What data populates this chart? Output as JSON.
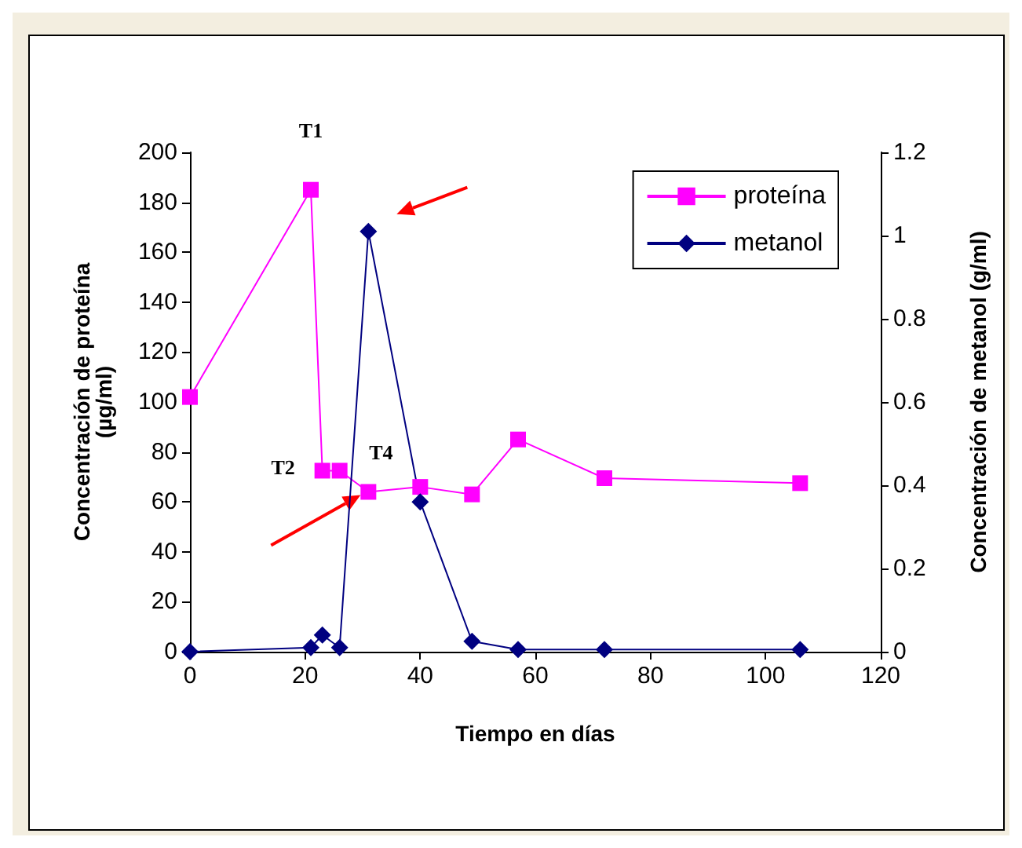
{
  "chart_data": {
    "type": "line",
    "xlabel": "Tiempo en días",
    "ylabel": "Concentración de proteína\n(µg/ml)",
    "y2label": "Concentración de metanol (g/ml)",
    "xlim": [
      0,
      120
    ],
    "xticks": [
      0,
      20,
      40,
      60,
      80,
      100,
      120
    ],
    "ylim": [
      0,
      200
    ],
    "yticks": [
      0,
      20,
      40,
      60,
      80,
      100,
      120,
      140,
      160,
      180,
      200
    ],
    "y2lim": [
      0,
      1.2
    ],
    "y2ticks": [
      0,
      0.2,
      0.4,
      0.6,
      0.8,
      1,
      1.2
    ],
    "grid": false,
    "legend": "top right",
    "line_style": "solid",
    "series": [
      {
        "name": "proteína",
        "color": "#ff00ff",
        "marker": "square",
        "x": [
          0,
          21,
          23,
          26,
          31,
          40,
          49,
          57,
          72,
          106
        ],
        "values": [
          102,
          185,
          72.5,
          72.5,
          64,
          66,
          63,
          85,
          69.5,
          67.5
        ]
      },
      {
        "name": "metanol",
        "color": "#000080",
        "marker": "diamond",
        "axis": "y2",
        "x": [
          0,
          21,
          23,
          26,
          31,
          40,
          49,
          57,
          72,
          106
        ],
        "values": [
          0,
          0.01,
          0.04,
          0.01,
          1.01,
          0.36,
          0.025,
          0.005,
          0.005,
          0.005
        ]
      }
    ],
    "annotations": [
      {
        "text": "T1",
        "x": 21,
        "y": 185
      },
      {
        "text": "T2",
        "x": 23,
        "y": 72.5
      },
      {
        "text": "T4",
        "x": 31,
        "y": 64
      }
    ]
  }
}
